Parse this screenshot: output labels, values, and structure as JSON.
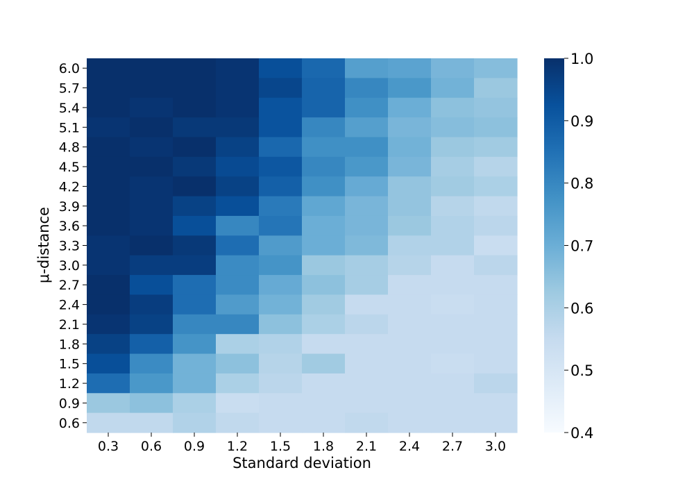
{
  "chart_data": {
    "type": "heatmap",
    "title": "",
    "xlabel": "Standard deviation",
    "ylabel": "μ-distance",
    "x": [
      "0.3",
      "0.6",
      "0.9",
      "1.2",
      "1.5",
      "1.8",
      "2.1",
      "2.4",
      "2.7",
      "3.0"
    ],
    "y": [
      "6.0",
      "5.7",
      "5.4",
      "5.1",
      "4.8",
      "4.5",
      "4.2",
      "3.9",
      "3.6",
      "3.3",
      "3.0",
      "2.7",
      "2.4",
      "2.1",
      "1.8",
      "1.5",
      "1.2",
      "0.9",
      "0.6"
    ],
    "values": [
      [
        1.0,
        1.0,
        1.0,
        0.99,
        0.93,
        0.87,
        0.74,
        0.73,
        0.68,
        0.66
      ],
      [
        1.0,
        1.0,
        1.0,
        0.99,
        0.95,
        0.88,
        0.8,
        0.76,
        0.69,
        0.63
      ],
      [
        1.0,
        0.99,
        1.0,
        0.99,
        0.92,
        0.88,
        0.78,
        0.7,
        0.65,
        0.64
      ],
      [
        0.99,
        1.0,
        0.98,
        0.98,
        0.92,
        0.8,
        0.74,
        0.68,
        0.66,
        0.65
      ],
      [
        1.0,
        0.99,
        1.0,
        0.96,
        0.87,
        0.78,
        0.78,
        0.69,
        0.63,
        0.62
      ],
      [
        1.0,
        1.0,
        0.98,
        0.94,
        0.91,
        0.8,
        0.76,
        0.68,
        0.61,
        0.58
      ],
      [
        1.0,
        0.99,
        1.0,
        0.96,
        0.89,
        0.78,
        0.71,
        0.64,
        0.62,
        0.6
      ],
      [
        1.0,
        0.99,
        0.96,
        0.93,
        0.83,
        0.72,
        0.68,
        0.64,
        0.58,
        0.56
      ],
      [
        1.0,
        0.99,
        0.93,
        0.8,
        0.84,
        0.7,
        0.68,
        0.63,
        0.59,
        0.57
      ],
      [
        0.99,
        1.0,
        0.98,
        0.86,
        0.75,
        0.7,
        0.67,
        0.59,
        0.59,
        0.54
      ],
      [
        0.99,
        0.97,
        0.97,
        0.79,
        0.77,
        0.63,
        0.61,
        0.58,
        0.55,
        0.57
      ],
      [
        1.0,
        0.93,
        0.86,
        0.79,
        0.71,
        0.65,
        0.61,
        0.55,
        0.55,
        0.55
      ],
      [
        1.0,
        0.97,
        0.86,
        0.75,
        0.69,
        0.62,
        0.55,
        0.55,
        0.54,
        0.55
      ],
      [
        0.99,
        0.96,
        0.8,
        0.8,
        0.65,
        0.6,
        0.57,
        0.55,
        0.55,
        0.55
      ],
      [
        0.96,
        0.89,
        0.77,
        0.6,
        0.59,
        0.55,
        0.55,
        0.55,
        0.55,
        0.55
      ],
      [
        0.93,
        0.79,
        0.69,
        0.65,
        0.58,
        0.62,
        0.55,
        0.55,
        0.54,
        0.55
      ],
      [
        0.86,
        0.76,
        0.69,
        0.6,
        0.57,
        0.55,
        0.55,
        0.55,
        0.55,
        0.57
      ],
      [
        0.63,
        0.65,
        0.6,
        0.54,
        0.55,
        0.55,
        0.55,
        0.55,
        0.55,
        0.55
      ],
      [
        0.56,
        0.56,
        0.59,
        0.56,
        0.55,
        0.55,
        0.56,
        0.55,
        0.55,
        0.55
      ]
    ],
    "colorbar": {
      "min": 0.4,
      "max": 1.0,
      "ticks": [
        "0.4",
        "0.5",
        "0.6",
        "0.7",
        "0.8",
        "0.9",
        "1.0"
      ],
      "colormap": "Blues",
      "stops": [
        "#f7fbff",
        "#deebf7",
        "#c6dbef",
        "#9ecae1",
        "#6baed6",
        "#4292c6",
        "#2171b5",
        "#08519c",
        "#08306b"
      ]
    },
    "legend": "colorbar-right",
    "grid": false
  }
}
